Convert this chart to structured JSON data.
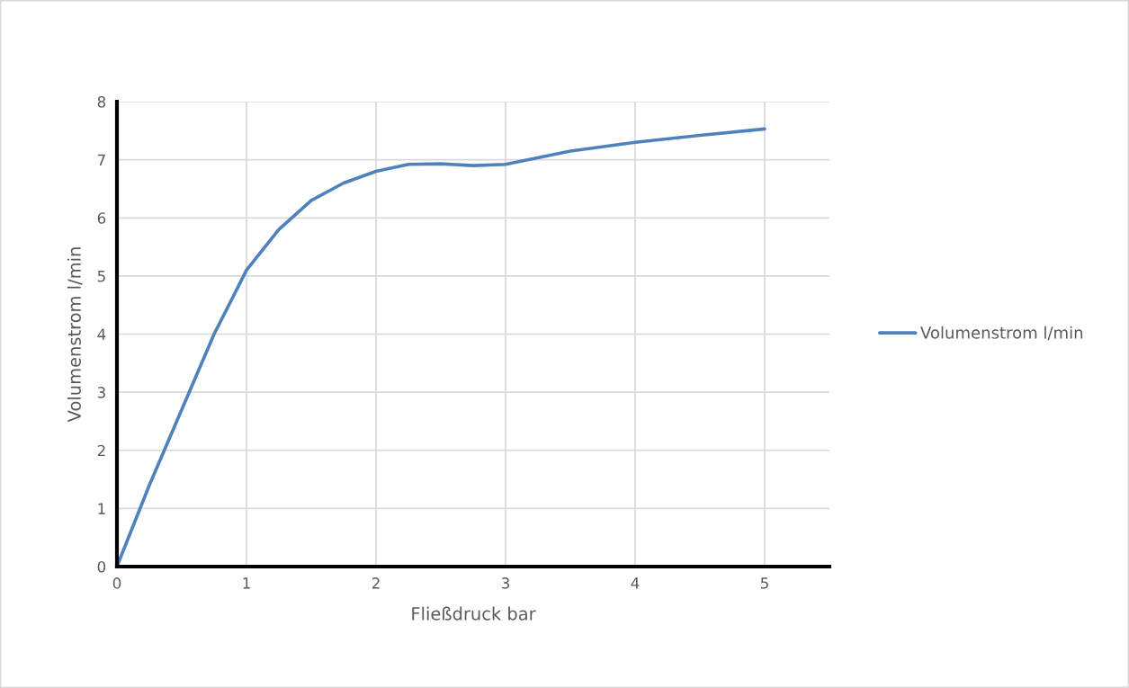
{
  "chart_data": {
    "type": "line",
    "xlabel": "Fließdruck bar",
    "ylabel": "Volumenstrom l/min",
    "x": [
      0,
      0.25,
      0.5,
      0.75,
      1,
      1.25,
      1.5,
      1.75,
      2,
      2.25,
      2.5,
      2.75,
      3,
      3.5,
      4,
      4.5,
      5
    ],
    "series": [
      {
        "name": "Volumenstrom l/min",
        "color": "#4f81bd",
        "values": [
          0,
          1.4,
          2.7,
          4.0,
          5.1,
          5.8,
          6.3,
          6.6,
          6.8,
          6.92,
          6.93,
          6.9,
          6.92,
          7.15,
          7.3,
          7.42,
          7.53
        ]
      }
    ],
    "xlim": [
      0,
      5.5
    ],
    "xticks": [
      0,
      1,
      2,
      3,
      4,
      5
    ],
    "ylim": [
      0,
      8
    ],
    "yticks": [
      0,
      1,
      2,
      3,
      4,
      5,
      6,
      7,
      8
    ],
    "grid": true,
    "legend": "right",
    "marker": "none",
    "line_style": "solid"
  }
}
